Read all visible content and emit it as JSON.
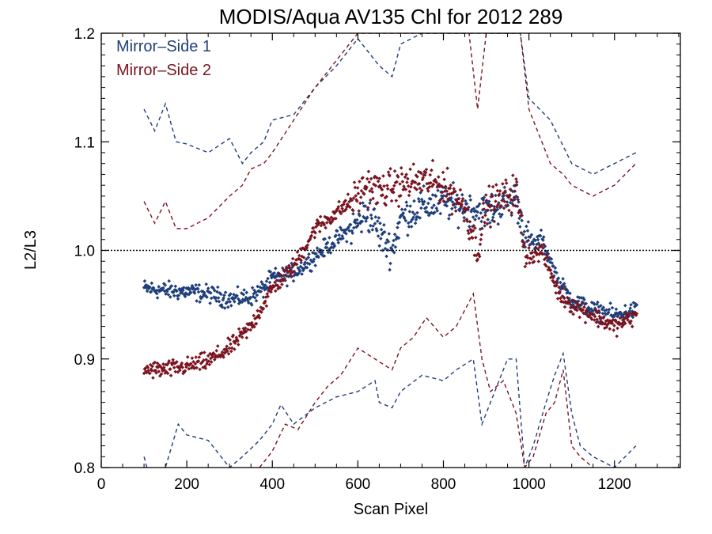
{
  "chart_data": {
    "type": "scatter",
    "title": "MODIS/Aqua AV135 Chl for 2012 289",
    "xlabel": "Scan Pixel",
    "ylabel": "L2/L3",
    "xlim": [
      0,
      1354
    ],
    "ylim": [
      0.8,
      1.2
    ],
    "xticks": [
      0,
      200,
      400,
      600,
      800,
      1000,
      1200
    ],
    "yticks": [
      0.8,
      0.9,
      1.0,
      1.1,
      1.2
    ],
    "xtick_labels": [
      "0",
      "200",
      "400",
      "600",
      "800",
      "1000",
      "1200"
    ],
    "ytick_labels": [
      "0.8",
      "0.9",
      "1.0",
      "1.1",
      "1.2"
    ],
    "reference_line": {
      "y": 1.0,
      "style": "dotted"
    },
    "legend_position": "top-left",
    "legend": [
      "Mirror–Side 1",
      "Mirror–Side 2"
    ],
    "colors": {
      "side1": "#1f3f7a",
      "side2": "#7a1420"
    },
    "series": [
      {
        "name": "Mirror–Side 1",
        "color": "#1f3f7a",
        "mean": [
          [
            100,
            0.965
          ],
          [
            150,
            0.963
          ],
          [
            200,
            0.962
          ],
          [
            250,
            0.96
          ],
          [
            300,
            0.955
          ],
          [
            350,
            0.957
          ],
          [
            380,
            0.965
          ],
          [
            400,
            0.975
          ],
          [
            430,
            0.976
          ],
          [
            460,
            0.982
          ],
          [
            500,
            0.995
          ],
          [
            550,
            1.01
          ],
          [
            600,
            1.025
          ],
          [
            620,
            1.035
          ],
          [
            640,
            1.025
          ],
          [
            660,
            1.01
          ],
          [
            680,
            1.0
          ],
          [
            700,
            1.03
          ],
          [
            750,
            1.04
          ],
          [
            800,
            1.045
          ],
          [
            850,
            1.04
          ],
          [
            900,
            1.035
          ],
          [
            950,
            1.045
          ],
          [
            970,
            1.05
          ],
          [
            990,
            1.015
          ],
          [
            1010,
            1.005
          ],
          [
            1030,
            1.01
          ],
          [
            1050,
            0.99
          ],
          [
            1070,
            0.97
          ],
          [
            1100,
            0.955
          ],
          [
            1150,
            0.945
          ],
          [
            1200,
            0.94
          ],
          [
            1250,
            0.945
          ]
        ],
        "upper": [
          [
            100,
            1.13
          ],
          [
            125,
            1.11
          ],
          [
            150,
            1.135
          ],
          [
            175,
            1.1
          ],
          [
            200,
            1.098
          ],
          [
            250,
            1.09
          ],
          [
            300,
            1.103
          ],
          [
            330,
            1.08
          ],
          [
            350,
            1.09
          ],
          [
            380,
            1.1
          ],
          [
            400,
            1.12
          ],
          [
            450,
            1.125
          ],
          [
            500,
            1.15
          ],
          [
            550,
            1.17
          ],
          [
            600,
            1.195
          ],
          [
            650,
            1.17
          ],
          [
            680,
            1.16
          ],
          [
            700,
            1.19
          ],
          [
            750,
            1.2
          ],
          [
            800,
            1.2
          ],
          [
            850,
            1.2
          ],
          [
            980,
            1.2
          ],
          [
            1000,
            1.14
          ],
          [
            1050,
            1.12
          ],
          [
            1100,
            1.08
          ],
          [
            1150,
            1.07
          ],
          [
            1200,
            1.08
          ],
          [
            1250,
            1.09
          ]
        ],
        "lower": [
          [
            100,
            0.81
          ],
          [
            110,
            0.795
          ],
          [
            150,
            0.8
          ],
          [
            180,
            0.84
          ],
          [
            200,
            0.83
          ],
          [
            250,
            0.825
          ],
          [
            300,
            0.8
          ],
          [
            330,
            0.81
          ],
          [
            370,
            0.825
          ],
          [
            400,
            0.84
          ],
          [
            420,
            0.858
          ],
          [
            450,
            0.84
          ],
          [
            500,
            0.855
          ],
          [
            550,
            0.865
          ],
          [
            600,
            0.87
          ],
          [
            640,
            0.88
          ],
          [
            650,
            0.86
          ],
          [
            680,
            0.855
          ],
          [
            700,
            0.87
          ],
          [
            750,
            0.885
          ],
          [
            800,
            0.88
          ],
          [
            830,
            0.89
          ],
          [
            870,
            0.9
          ],
          [
            890,
            0.84
          ],
          [
            920,
            0.87
          ],
          [
            950,
            0.9
          ],
          [
            970,
            0.9
          ],
          [
            990,
            0.8
          ],
          [
            1010,
            0.82
          ],
          [
            1040,
            0.86
          ],
          [
            1060,
            0.885
          ],
          [
            1080,
            0.905
          ],
          [
            1100,
            0.85
          ],
          [
            1120,
            0.82
          ],
          [
            1150,
            0.81
          ],
          [
            1200,
            0.8
          ],
          [
            1250,
            0.82
          ]
        ]
      },
      {
        "name": "Mirror–Side 2",
        "color": "#7a1420",
        "mean": [
          [
            100,
            0.89
          ],
          [
            150,
            0.89
          ],
          [
            200,
            0.893
          ],
          [
            250,
            0.898
          ],
          [
            300,
            0.91
          ],
          [
            350,
            0.93
          ],
          [
            400,
            0.965
          ],
          [
            450,
            0.985
          ],
          [
            500,
            1.02
          ],
          [
            550,
            1.035
          ],
          [
            600,
            1.05
          ],
          [
            620,
            1.06
          ],
          [
            650,
            1.055
          ],
          [
            700,
            1.06
          ],
          [
            750,
            1.065
          ],
          [
            800,
            1.06
          ],
          [
            850,
            1.04
          ],
          [
            880,
            1.0
          ],
          [
            900,
            1.04
          ],
          [
            950,
            1.05
          ],
          [
            970,
            1.055
          ],
          [
            990,
            1.0
          ],
          [
            1010,
            0.995
          ],
          [
            1030,
            1.0
          ],
          [
            1050,
            0.98
          ],
          [
            1070,
            0.96
          ],
          [
            1100,
            0.95
          ],
          [
            1150,
            0.94
          ],
          [
            1200,
            0.93
          ],
          [
            1250,
            0.94
          ]
        ],
        "upper": [
          [
            100,
            1.045
          ],
          [
            125,
            1.025
          ],
          [
            150,
            1.045
          ],
          [
            175,
            1.02
          ],
          [
            200,
            1.02
          ],
          [
            250,
            1.03
          ],
          [
            300,
            1.05
          ],
          [
            330,
            1.06
          ],
          [
            350,
            1.075
          ],
          [
            380,
            1.08
          ],
          [
            400,
            1.09
          ],
          [
            450,
            1.12
          ],
          [
            500,
            1.15
          ],
          [
            550,
            1.175
          ],
          [
            600,
            1.2
          ],
          [
            700,
            1.2
          ],
          [
            860,
            1.2
          ],
          [
            880,
            1.13
          ],
          [
            900,
            1.2
          ],
          [
            980,
            1.2
          ],
          [
            1000,
            1.13
          ],
          [
            1050,
            1.08
          ],
          [
            1080,
            1.07
          ],
          [
            1100,
            1.06
          ],
          [
            1150,
            1.05
          ],
          [
            1200,
            1.06
          ],
          [
            1250,
            1.08
          ]
        ],
        "lower": [
          [
            370,
            0.8
          ],
          [
            400,
            0.815
          ],
          [
            430,
            0.84
          ],
          [
            460,
            0.835
          ],
          [
            500,
            0.86
          ],
          [
            530,
            0.875
          ],
          [
            560,
            0.885
          ],
          [
            600,
            0.91
          ],
          [
            640,
            0.9
          ],
          [
            680,
            0.89
          ],
          [
            700,
            0.91
          ],
          [
            730,
            0.92
          ],
          [
            760,
            0.938
          ],
          [
            800,
            0.92
          ],
          [
            830,
            0.93
          ],
          [
            870,
            0.96
          ],
          [
            890,
            0.9
          ],
          [
            910,
            0.87
          ],
          [
            940,
            0.88
          ],
          [
            970,
            0.85
          ],
          [
            990,
            0.8
          ],
          [
            1010,
            0.81
          ],
          [
            1040,
            0.85
          ],
          [
            1060,
            0.86
          ],
          [
            1080,
            0.89
          ],
          [
            1100,
            0.82
          ],
          [
            1120,
            0.81
          ],
          [
            1150,
            0.8
          ]
        ]
      }
    ]
  }
}
